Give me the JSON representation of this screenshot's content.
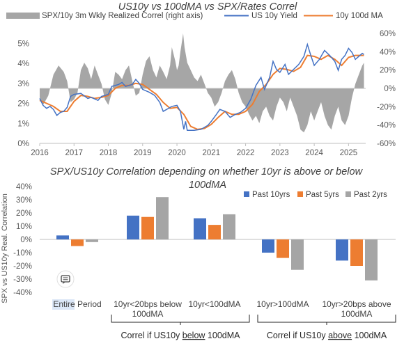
{
  "chart_data": [
    {
      "type": "line",
      "title": "US10y vs 100dMA vs SPX/Rates Correl",
      "x_ticks": [
        "2016",
        "2017",
        "2018",
        "2019",
        "2020",
        "2021",
        "2022",
        "2023",
        "2024",
        "2025"
      ],
      "y_left_ticks": [
        "0%",
        "1%",
        "2%",
        "3%",
        "4%",
        "5%"
      ],
      "y_right_ticks": [
        "-60%",
        "-40%",
        "-20%",
        "0%",
        "20%",
        "40%",
        "60%"
      ],
      "ylim_left": [
        0,
        5.5
      ],
      "ylim_right": [
        -60,
        60
      ],
      "legend_position": "top",
      "series": [
        {
          "name": "SPX/10y 3m Wkly Realized Correl (right axis)",
          "kind": "area",
          "axis": "right",
          "color": "#a6a6a6",
          "points": [
            [
              2016.0,
              -10
            ],
            [
              2016.1,
              -18
            ],
            [
              2016.25,
              -8
            ],
            [
              2016.4,
              15
            ],
            [
              2016.55,
              25
            ],
            [
              2016.7,
              18
            ],
            [
              2016.8,
              8
            ],
            [
              2016.9,
              -15
            ],
            [
              2017.0,
              -12
            ],
            [
              2017.1,
              -5
            ],
            [
              2017.2,
              20
            ],
            [
              2017.3,
              28
            ],
            [
              2017.4,
              22
            ],
            [
              2017.5,
              10
            ],
            [
              2017.6,
              25
            ],
            [
              2017.7,
              15
            ],
            [
              2017.8,
              5
            ],
            [
              2017.9,
              -12
            ],
            [
              2018.0,
              -18
            ],
            [
              2018.1,
              -5
            ],
            [
              2018.2,
              18
            ],
            [
              2018.3,
              15
            ],
            [
              2018.4,
              10
            ],
            [
              2018.5,
              20
            ],
            [
              2018.6,
              25
            ],
            [
              2018.7,
              8
            ],
            [
              2018.8,
              -8
            ],
            [
              2018.9,
              -5
            ],
            [
              2019.0,
              15
            ],
            [
              2019.1,
              30
            ],
            [
              2019.2,
              35
            ],
            [
              2019.3,
              20
            ],
            [
              2019.4,
              12
            ],
            [
              2019.5,
              25
            ],
            [
              2019.6,
              18
            ],
            [
              2019.7,
              10
            ],
            [
              2019.8,
              25
            ],
            [
              2019.85,
              45
            ],
            [
              2019.95,
              30
            ],
            [
              2020.0,
              20
            ],
            [
              2020.05,
              25
            ],
            [
              2020.1,
              40
            ],
            [
              2020.15,
              52
            ],
            [
              2020.18,
              60
            ],
            [
              2020.22,
              45
            ],
            [
              2020.3,
              28
            ],
            [
              2020.4,
              20
            ],
            [
              2020.5,
              12
            ],
            [
              2020.6,
              8
            ],
            [
              2020.7,
              15
            ],
            [
              2020.8,
              5
            ],
            [
              2020.9,
              -5
            ],
            [
              2021.0,
              -10
            ],
            [
              2021.1,
              -20
            ],
            [
              2021.2,
              -15
            ],
            [
              2021.3,
              -5
            ],
            [
              2021.4,
              8
            ],
            [
              2021.5,
              15
            ],
            [
              2021.6,
              20
            ],
            [
              2021.7,
              10
            ],
            [
              2021.8,
              -5
            ],
            [
              2021.9,
              -15
            ],
            [
              2022.0,
              -20
            ],
            [
              2022.1,
              -28
            ],
            [
              2022.2,
              -35
            ],
            [
              2022.3,
              -30
            ],
            [
              2022.4,
              -38
            ],
            [
              2022.5,
              -25
            ],
            [
              2022.6,
              -20
            ],
            [
              2022.7,
              -30
            ],
            [
              2022.8,
              -35
            ],
            [
              2022.9,
              -20
            ],
            [
              2023.0,
              -10
            ],
            [
              2023.1,
              -15
            ],
            [
              2023.2,
              -25
            ],
            [
              2023.3,
              -10
            ],
            [
              2023.4,
              -20
            ],
            [
              2023.5,
              -30
            ],
            [
              2023.6,
              -45
            ],
            [
              2023.7,
              -48
            ],
            [
              2023.8,
              -40
            ],
            [
              2023.9,
              -25
            ],
            [
              2024.0,
              -35
            ],
            [
              2024.1,
              -25
            ],
            [
              2024.2,
              -15
            ],
            [
              2024.3,
              -30
            ],
            [
              2024.4,
              -40
            ],
            [
              2024.5,
              -45
            ],
            [
              2024.6,
              -30
            ],
            [
              2024.7,
              -20
            ],
            [
              2024.8,
              -35
            ],
            [
              2024.9,
              -40
            ],
            [
              2025.0,
              -30
            ],
            [
              2025.1,
              -10
            ],
            [
              2025.2,
              5
            ],
            [
              2025.3,
              15
            ],
            [
              2025.4,
              25
            ],
            [
              2025.45,
              28
            ]
          ]
        },
        {
          "name": "US 10y Yield",
          "kind": "line",
          "axis": "left",
          "color": "#4472c4",
          "points": [
            [
              2016.0,
              2.25
            ],
            [
              2016.1,
              1.9
            ],
            [
              2016.2,
              1.75
            ],
            [
              2016.3,
              1.85
            ],
            [
              2016.4,
              1.7
            ],
            [
              2016.5,
              1.4
            ],
            [
              2016.6,
              1.55
            ],
            [
              2016.7,
              1.6
            ],
            [
              2016.8,
              1.8
            ],
            [
              2016.9,
              2.35
            ],
            [
              2017.0,
              2.45
            ],
            [
              2017.2,
              2.5
            ],
            [
              2017.4,
              2.25
            ],
            [
              2017.5,
              2.3
            ],
            [
              2017.7,
              2.15
            ],
            [
              2017.8,
              2.35
            ],
            [
              2018.0,
              2.45
            ],
            [
              2018.1,
              2.85
            ],
            [
              2018.3,
              2.95
            ],
            [
              2018.4,
              3.05
            ],
            [
              2018.5,
              2.85
            ],
            [
              2018.7,
              2.95
            ],
            [
              2018.8,
              3.2
            ],
            [
              2018.9,
              3.0
            ],
            [
              2019.0,
              2.7
            ],
            [
              2019.2,
              2.55
            ],
            [
              2019.35,
              2.4
            ],
            [
              2019.5,
              2.05
            ],
            [
              2019.6,
              1.6
            ],
            [
              2019.7,
              1.7
            ],
            [
              2019.85,
              1.85
            ],
            [
              2020.0,
              1.9
            ],
            [
              2020.1,
              1.6
            ],
            [
              2020.2,
              0.7
            ],
            [
              2020.25,
              1.1
            ],
            [
              2020.3,
              0.65
            ],
            [
              2020.5,
              0.65
            ],
            [
              2020.7,
              0.7
            ],
            [
              2020.9,
              0.9
            ],
            [
              2021.0,
              1.1
            ],
            [
              2021.15,
              1.45
            ],
            [
              2021.25,
              1.7
            ],
            [
              2021.4,
              1.6
            ],
            [
              2021.55,
              1.3
            ],
            [
              2021.7,
              1.45
            ],
            [
              2021.85,
              1.55
            ],
            [
              2022.0,
              1.75
            ],
            [
              2022.15,
              2.2
            ],
            [
              2022.3,
              2.9
            ],
            [
              2022.45,
              3.3
            ],
            [
              2022.55,
              2.7
            ],
            [
              2022.7,
              3.3
            ],
            [
              2022.8,
              4.1
            ],
            [
              2022.9,
              3.7
            ],
            [
              2023.0,
              3.55
            ],
            [
              2023.15,
              3.95
            ],
            [
              2023.25,
              3.45
            ],
            [
              2023.4,
              3.7
            ],
            [
              2023.55,
              3.95
            ],
            [
              2023.7,
              4.35
            ],
            [
              2023.8,
              4.95
            ],
            [
              2023.9,
              4.4
            ],
            [
              2024.0,
              3.9
            ],
            [
              2024.15,
              4.2
            ],
            [
              2024.3,
              4.65
            ],
            [
              2024.45,
              4.4
            ],
            [
              2024.6,
              4.1
            ],
            [
              2024.7,
              3.65
            ],
            [
              2024.8,
              4.2
            ],
            [
              2024.9,
              4.4
            ],
            [
              2025.0,
              4.75
            ],
            [
              2025.1,
              4.55
            ],
            [
              2025.2,
              4.2
            ],
            [
              2025.3,
              4.35
            ],
            [
              2025.4,
              4.5
            ],
            [
              2025.45,
              4.45
            ]
          ]
        },
        {
          "name": "10y 100d MA",
          "kind": "line",
          "axis": "left",
          "color": "#ed7d31",
          "points": [
            [
              2016.0,
              2.15
            ],
            [
              2016.2,
              2.0
            ],
            [
              2016.4,
              1.85
            ],
            [
              2016.6,
              1.6
            ],
            [
              2016.8,
              1.6
            ],
            [
              2017.0,
              2.1
            ],
            [
              2017.2,
              2.4
            ],
            [
              2017.4,
              2.35
            ],
            [
              2017.6,
              2.25
            ],
            [
              2017.8,
              2.3
            ],
            [
              2018.0,
              2.4
            ],
            [
              2018.2,
              2.75
            ],
            [
              2018.4,
              2.9
            ],
            [
              2018.6,
              2.9
            ],
            [
              2018.8,
              3.0
            ],
            [
              2019.0,
              2.95
            ],
            [
              2019.2,
              2.7
            ],
            [
              2019.4,
              2.45
            ],
            [
              2019.6,
              2.05
            ],
            [
              2019.8,
              1.75
            ],
            [
              2020.0,
              1.8
            ],
            [
              2020.2,
              1.45
            ],
            [
              2020.4,
              0.85
            ],
            [
              2020.6,
              0.7
            ],
            [
              2020.8,
              0.75
            ],
            [
              2021.0,
              0.95
            ],
            [
              2021.2,
              1.3
            ],
            [
              2021.4,
              1.6
            ],
            [
              2021.6,
              1.45
            ],
            [
              2021.8,
              1.45
            ],
            [
              2022.0,
              1.6
            ],
            [
              2022.2,
              1.95
            ],
            [
              2022.4,
              2.6
            ],
            [
              2022.6,
              2.95
            ],
            [
              2022.8,
              3.45
            ],
            [
              2023.0,
              3.75
            ],
            [
              2023.2,
              3.7
            ],
            [
              2023.4,
              3.6
            ],
            [
              2023.6,
              3.8
            ],
            [
              2023.8,
              4.4
            ],
            [
              2024.0,
              4.35
            ],
            [
              2024.2,
              4.2
            ],
            [
              2024.4,
              4.4
            ],
            [
              2024.6,
              4.2
            ],
            [
              2024.8,
              3.9
            ],
            [
              2025.0,
              4.3
            ],
            [
              2025.2,
              4.4
            ],
            [
              2025.45,
              4.4
            ]
          ]
        }
      ]
    },
    {
      "type": "bar",
      "title": "SPX/US10y Correlation depending on whether 10yr is above or below 100dMA",
      "ylabel": "SPX vs US10y Real. Correlation",
      "ylim": [
        -40,
        40
      ],
      "y_ticks": [
        "40%",
        "30%",
        "20%",
        "10%",
        "0%",
        "-10%",
        "-20%",
        "-30%",
        "-40%"
      ],
      "legend_position": "top-right",
      "categories": [
        "Entire Period",
        "10yr<20bps below 100dMA",
        "10yr<100dMA",
        "10yr>100dMA",
        "10yr>20bps above 100dMA"
      ],
      "series": [
        {
          "name": "Past 10yrs",
          "color": "#4472c4",
          "values": [
            3,
            18,
            16,
            -10,
            -16
          ]
        },
        {
          "name": "Past 5yrs",
          "color": "#ed7d31",
          "values": [
            -5,
            17,
            11,
            -14,
            -20
          ]
        },
        {
          "name": "Past 2yrs",
          "color": "#a5a5a5",
          "values": [
            -2,
            32,
            19,
            -23,
            -31
          ]
        }
      ],
      "group_brackets": [
        {
          "prefix": "Correl if US10y ",
          "underlined": "below",
          "suffix": " 100dMA"
        },
        {
          "prefix": "Correl if US10y ",
          "underlined": "above",
          "suffix": " 100dMA"
        }
      ]
    }
  ]
}
